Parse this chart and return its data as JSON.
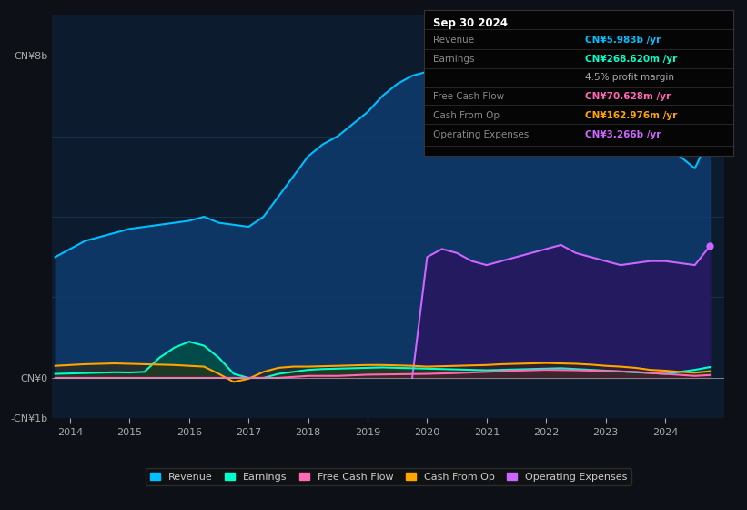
{
  "bg_color": "#0d1117",
  "plot_bg_color": "#0d1b2e",
  "grid_color": "#1e3a5f",
  "title": "Sep 30 2024",
  "ylim": [
    -1000000000.0,
    9000000000.0
  ],
  "xtick_years": [
    2014,
    2015,
    2016,
    2017,
    2018,
    2019,
    2020,
    2021,
    2022,
    2023,
    2024
  ],
  "legend_items": [
    {
      "label": "Revenue",
      "color": "#00bfff"
    },
    {
      "label": "Earnings",
      "color": "#00ffcc"
    },
    {
      "label": "Free Cash Flow",
      "color": "#ff69b4"
    },
    {
      "label": "Cash From Op",
      "color": "#ffa500"
    },
    {
      "label": "Operating Expenses",
      "color": "#cc66ff"
    }
  ],
  "revenue": {
    "color": "#00bfff",
    "fill_color": "#0d3b6e",
    "x": [
      2013.75,
      2014.0,
      2014.25,
      2014.5,
      2014.75,
      2015.0,
      2015.25,
      2015.5,
      2015.75,
      2016.0,
      2016.25,
      2016.5,
      2016.75,
      2017.0,
      2017.25,
      2017.5,
      2017.75,
      2018.0,
      2018.25,
      2018.5,
      2018.75,
      2019.0,
      2019.25,
      2019.5,
      2019.75,
      2020.0,
      2020.25,
      2020.5,
      2020.75,
      2021.0,
      2021.25,
      2021.5,
      2021.75,
      2022.0,
      2022.25,
      2022.5,
      2022.75,
      2023.0,
      2023.25,
      2023.5,
      2023.75,
      2024.0,
      2024.25,
      2024.5,
      2024.75
    ],
    "y": [
      3000000000.0,
      3200000000.0,
      3400000000.0,
      3500000000.0,
      3600000000.0,
      3700000000.0,
      3750000000.0,
      3800000000.0,
      3850000000.0,
      3900000000.0,
      4000000000.0,
      3850000000.0,
      3800000000.0,
      3750000000.0,
      4000000000.0,
      4500000000.0,
      5000000000.0,
      5500000000.0,
      5800000000.0,
      6000000000.0,
      6300000000.0,
      6600000000.0,
      7000000000.0,
      7300000000.0,
      7500000000.0,
      7600000000.0,
      7500000000.0,
      7300000000.0,
      7100000000.0,
      7000000000.0,
      7100000000.0,
      7300000000.0,
      7500000000.0,
      7700000000.0,
      7900000000.0,
      7800000000.0,
      7600000000.0,
      7300000000.0,
      7000000000.0,
      6700000000.0,
      6300000000.0,
      6000000000.0,
      5500000000.0,
      5200000000.0,
      5983000000.0
    ]
  },
  "earnings": {
    "color": "#00ffcc",
    "fill_color": "#005540",
    "x": [
      2013.75,
      2014.0,
      2014.25,
      2014.5,
      2014.75,
      2015.0,
      2015.25,
      2015.5,
      2015.75,
      2016.0,
      2016.25,
      2016.5,
      2016.75,
      2017.0,
      2017.25,
      2017.5,
      2017.75,
      2018.0,
      2018.25,
      2018.5,
      2018.75,
      2019.0,
      2019.25,
      2019.5,
      2019.75,
      2020.0,
      2020.25,
      2020.5,
      2020.75,
      2021.0,
      2021.25,
      2021.5,
      2021.75,
      2022.0,
      2022.25,
      2022.5,
      2022.75,
      2023.0,
      2023.25,
      2023.5,
      2023.75,
      2024.0,
      2024.25,
      2024.5,
      2024.75
    ],
    "y": [
      100000000.0,
      110000000.0,
      120000000.0,
      130000000.0,
      140000000.0,
      135000000.0,
      150000000.0,
      500000000.0,
      750000000.0,
      900000000.0,
      800000000.0,
      500000000.0,
      100000000.0,
      0,
      0,
      100000000.0,
      150000000.0,
      200000000.0,
      220000000.0,
      230000000.0,
      240000000.0,
      250000000.0,
      260000000.0,
      250000000.0,
      240000000.0,
      230000000.0,
      220000000.0,
      210000000.0,
      200000000.0,
      190000000.0,
      200000000.0,
      210000000.0,
      220000000.0,
      230000000.0,
      240000000.0,
      220000000.0,
      200000000.0,
      180000000.0,
      160000000.0,
      140000000.0,
      120000000.0,
      100000000.0,
      150000000.0,
      200000000.0,
      268620000.0
    ]
  },
  "free_cash_flow": {
    "color": "#ff69b4",
    "fill_color": "#5a1535",
    "x": [
      2013.75,
      2014.0,
      2014.5,
      2015.0,
      2015.5,
      2016.0,
      2016.5,
      2017.0,
      2017.5,
      2018.0,
      2018.5,
      2019.0,
      2019.5,
      2020.0,
      2020.5,
      2021.0,
      2021.5,
      2022.0,
      2022.5,
      2023.0,
      2023.5,
      2024.0,
      2024.5,
      2024.75
    ],
    "y": [
      0,
      0,
      0,
      0,
      0,
      0,
      0,
      0,
      0,
      50000000.0,
      50000000.0,
      80000000.0,
      90000000.0,
      100000000.0,
      120000000.0,
      150000000.0,
      180000000.0,
      200000000.0,
      190000000.0,
      170000000.0,
      150000000.0,
      100000000.0,
      50000000.0,
      70628000.0
    ]
  },
  "cash_from_op": {
    "color": "#ffa500",
    "fill_color": "#3d2800",
    "x": [
      2013.75,
      2014.0,
      2014.25,
      2014.5,
      2014.75,
      2015.0,
      2015.25,
      2015.5,
      2015.75,
      2016.0,
      2016.25,
      2016.5,
      2016.75,
      2017.0,
      2017.25,
      2017.5,
      2017.75,
      2018.0,
      2018.25,
      2018.5,
      2018.75,
      2019.0,
      2019.25,
      2019.5,
      2019.75,
      2020.0,
      2020.25,
      2020.5,
      2020.75,
      2021.0,
      2021.25,
      2021.5,
      2021.75,
      2022.0,
      2022.25,
      2022.5,
      2022.75,
      2023.0,
      2023.25,
      2023.5,
      2023.75,
      2024.0,
      2024.25,
      2024.5,
      2024.75
    ],
    "y": [
      300000000.0,
      320000000.0,
      340000000.0,
      350000000.0,
      360000000.0,
      350000000.0,
      340000000.0,
      330000000.0,
      320000000.0,
      300000000.0,
      280000000.0,
      100000000.0,
      -100000000.0,
      -20000000.0,
      150000000.0,
      250000000.0,
      280000000.0,
      280000000.0,
      290000000.0,
      300000000.0,
      310000000.0,
      320000000.0,
      320000000.0,
      310000000.0,
      300000000.0,
      280000000.0,
      290000000.0,
      300000000.0,
      310000000.0,
      320000000.0,
      340000000.0,
      350000000.0,
      360000000.0,
      370000000.0,
      360000000.0,
      350000000.0,
      330000000.0,
      300000000.0,
      280000000.0,
      250000000.0,
      200000000.0,
      180000000.0,
      150000000.0,
      130000000.0,
      162976000.0
    ]
  },
  "operating_expenses": {
    "color": "#cc66ff",
    "fill_color": "#2d0f5e",
    "x": [
      2019.75,
      2020.0,
      2020.25,
      2020.5,
      2020.75,
      2021.0,
      2021.25,
      2021.5,
      2021.75,
      2022.0,
      2022.25,
      2022.5,
      2022.75,
      2023.0,
      2023.25,
      2023.5,
      2023.75,
      2024.0,
      2024.25,
      2024.5,
      2024.75
    ],
    "y": [
      0,
      3000000000.0,
      3200000000.0,
      3100000000.0,
      2900000000.0,
      2800000000.0,
      2900000000.0,
      3000000000.0,
      3100000000.0,
      3200000000.0,
      3300000000.0,
      3100000000.0,
      3000000000.0,
      2900000000.0,
      2800000000.0,
      2850000000.0,
      2900000000.0,
      2900000000.0,
      2850000000.0,
      2800000000.0,
      3266000000.0
    ]
  },
  "info_rows": [
    {
      "label": "Revenue",
      "value": "CN¥5.983b /yr",
      "value_color": "#00bfff"
    },
    {
      "label": "Earnings",
      "value": "CN¥268.620m /yr",
      "value_color": "#00ffcc"
    },
    {
      "label": "",
      "value": "4.5% profit margin",
      "value_color": "#aaaaaa"
    },
    {
      "label": "Free Cash Flow",
      "value": "CN¥70.628m /yr",
      "value_color": "#ff69b4"
    },
    {
      "label": "Cash From Op",
      "value": "CN¥162.976m /yr",
      "value_color": "#ffa500"
    },
    {
      "label": "Operating Expenses",
      "value": "CN¥3.266b /yr",
      "value_color": "#cc66ff"
    }
  ]
}
